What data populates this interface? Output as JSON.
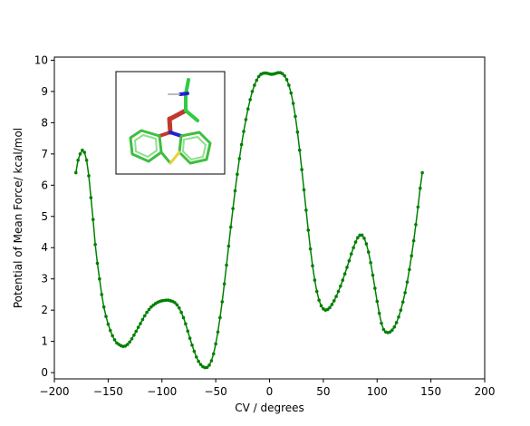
{
  "chart_data": {
    "type": "line",
    "title": "",
    "xlabel": "CV / degrees",
    "ylabel": "Potential of Mean Force/ kcal/mol",
    "xlim": [
      -200,
      200
    ],
    "ylim": [
      -0.2,
      10.1
    ],
    "xticks": [
      -200,
      -150,
      -100,
      -50,
      0,
      50,
      100,
      150,
      200
    ],
    "yticks": [
      0,
      1,
      2,
      3,
      4,
      5,
      6,
      7,
      8,
      9,
      10
    ],
    "grid": false,
    "legend": "none",
    "series": [
      {
        "color": "#008000",
        "marker": "dot",
        "points": [
          [
            -180,
            6.4
          ],
          [
            -178,
            6.8
          ],
          [
            -176,
            7.0
          ],
          [
            -174,
            7.12
          ],
          [
            -172,
            7.05
          ],
          [
            -170,
            6.8
          ],
          [
            -168,
            6.3
          ],
          [
            -166,
            5.6
          ],
          [
            -164,
            4.9
          ],
          [
            -162,
            4.1
          ],
          [
            -160,
            3.5
          ],
          [
            -158,
            3.0
          ],
          [
            -156,
            2.5
          ],
          [
            -154,
            2.1
          ],
          [
            -152,
            1.8
          ],
          [
            -150,
            1.55
          ],
          [
            -148,
            1.35
          ],
          [
            -146,
            1.18
          ],
          [
            -144,
            1.05
          ],
          [
            -142,
            0.95
          ],
          [
            -140,
            0.9
          ],
          [
            -138,
            0.86
          ],
          [
            -136,
            0.84
          ],
          [
            -134,
            0.85
          ],
          [
            -132,
            0.9
          ],
          [
            -130,
            0.98
          ],
          [
            -128,
            1.08
          ],
          [
            -126,
            1.2
          ],
          [
            -124,
            1.32
          ],
          [
            -122,
            1.45
          ],
          [
            -120,
            1.57
          ],
          [
            -118,
            1.7
          ],
          [
            -116,
            1.82
          ],
          [
            -114,
            1.93
          ],
          [
            -112,
            2.02
          ],
          [
            -110,
            2.1
          ],
          [
            -108,
            2.16
          ],
          [
            -106,
            2.21
          ],
          [
            -104,
            2.25
          ],
          [
            -102,
            2.28
          ],
          [
            -100,
            2.3
          ],
          [
            -98,
            2.31
          ],
          [
            -96,
            2.32
          ],
          [
            -94,
            2.32
          ],
          [
            -92,
            2.3
          ],
          [
            -90,
            2.28
          ],
          [
            -88,
            2.24
          ],
          [
            -86,
            2.17
          ],
          [
            -84,
            2.07
          ],
          [
            -82,
            1.93
          ],
          [
            -80,
            1.76
          ],
          [
            -78,
            1.56
          ],
          [
            -76,
            1.33
          ],
          [
            -74,
            1.1
          ],
          [
            -72,
            0.88
          ],
          [
            -70,
            0.68
          ],
          [
            -68,
            0.5
          ],
          [
            -66,
            0.36
          ],
          [
            -64,
            0.26
          ],
          [
            -62,
            0.19
          ],
          [
            -60,
            0.16
          ],
          [
            -58,
            0.17
          ],
          [
            -56,
            0.24
          ],
          [
            -54,
            0.38
          ],
          [
            -52,
            0.6
          ],
          [
            -50,
            0.92
          ],
          [
            -48,
            1.3
          ],
          [
            -46,
            1.76
          ],
          [
            -44,
            2.27
          ],
          [
            -42,
            2.84
          ],
          [
            -40,
            3.44
          ],
          [
            -38,
            4.05
          ],
          [
            -36,
            4.66
          ],
          [
            -34,
            5.25
          ],
          [
            -32,
            5.82
          ],
          [
            -30,
            6.35
          ],
          [
            -28,
            6.85
          ],
          [
            -26,
            7.3
          ],
          [
            -24,
            7.72
          ],
          [
            -22,
            8.1
          ],
          [
            -20,
            8.44
          ],
          [
            -18,
            8.74
          ],
          [
            -16,
            9.0
          ],
          [
            -14,
            9.2
          ],
          [
            -12,
            9.36
          ],
          [
            -10,
            9.48
          ],
          [
            -8,
            9.55
          ],
          [
            -6,
            9.58
          ],
          [
            -4,
            9.59
          ],
          [
            -2,
            9.58
          ],
          [
            0,
            9.56
          ],
          [
            2,
            9.55
          ],
          [
            4,
            9.56
          ],
          [
            6,
            9.58
          ],
          [
            8,
            9.6
          ],
          [
            10,
            9.6
          ],
          [
            12,
            9.57
          ],
          [
            14,
            9.5
          ],
          [
            16,
            9.38
          ],
          [
            18,
            9.2
          ],
          [
            20,
            8.95
          ],
          [
            22,
            8.62
          ],
          [
            24,
            8.2
          ],
          [
            26,
            7.7
          ],
          [
            28,
            7.12
          ],
          [
            30,
            6.5
          ],
          [
            32,
            5.85
          ],
          [
            34,
            5.2
          ],
          [
            36,
            4.56
          ],
          [
            38,
            3.96
          ],
          [
            40,
            3.42
          ],
          [
            42,
            2.96
          ],
          [
            44,
            2.6
          ],
          [
            46,
            2.32
          ],
          [
            48,
            2.14
          ],
          [
            50,
            2.04
          ],
          [
            52,
            2.0
          ],
          [
            54,
            2.02
          ],
          [
            56,
            2.08
          ],
          [
            58,
            2.18
          ],
          [
            60,
            2.3
          ],
          [
            62,
            2.44
          ],
          [
            64,
            2.6
          ],
          [
            66,
            2.77
          ],
          [
            68,
            2.96
          ],
          [
            70,
            3.16
          ],
          [
            72,
            3.37
          ],
          [
            74,
            3.58
          ],
          [
            76,
            3.8
          ],
          [
            78,
            4.0
          ],
          [
            80,
            4.18
          ],
          [
            82,
            4.32
          ],
          [
            84,
            4.4
          ],
          [
            86,
            4.4
          ],
          [
            88,
            4.3
          ],
          [
            90,
            4.12
          ],
          [
            92,
            3.86
          ],
          [
            94,
            3.52
          ],
          [
            96,
            3.12
          ],
          [
            98,
            2.7
          ],
          [
            100,
            2.28
          ],
          [
            102,
            1.9
          ],
          [
            104,
            1.58
          ],
          [
            106,
            1.38
          ],
          [
            108,
            1.3
          ],
          [
            110,
            1.28
          ],
          [
            112,
            1.3
          ],
          [
            114,
            1.36
          ],
          [
            116,
            1.46
          ],
          [
            118,
            1.6
          ],
          [
            120,
            1.78
          ],
          [
            122,
            2.0
          ],
          [
            124,
            2.26
          ],
          [
            126,
            2.56
          ],
          [
            128,
            2.9
          ],
          [
            130,
            3.3
          ],
          [
            132,
            3.74
          ],
          [
            134,
            4.22
          ],
          [
            136,
            4.74
          ],
          [
            138,
            5.3
          ],
          [
            140,
            5.9
          ],
          [
            142,
            6.4
          ]
        ]
      }
    ],
    "inset": {
      "description_none": "",
      "kind": "molecule"
    }
  }
}
